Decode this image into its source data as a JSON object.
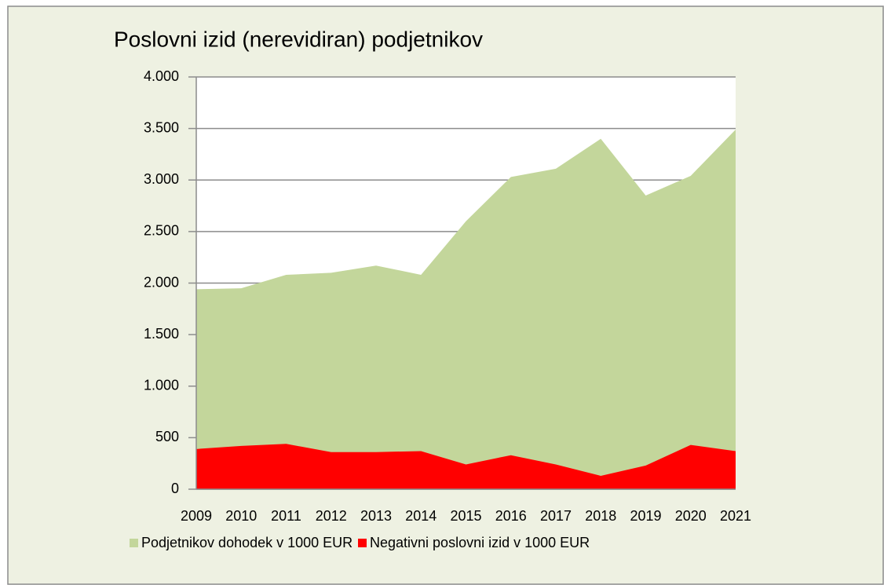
{
  "chart_data": {
    "type": "area",
    "title": "Poslovni  izid (nerevidiran)  podjetnikov",
    "categories": [
      "2009",
      "2010",
      "2011",
      "2012",
      "2013",
      "2014",
      "2015",
      "2016",
      "2017",
      "2018",
      "2019",
      "2020",
      "2021"
    ],
    "series": [
      {
        "name": "Podjetnikov dohodek v 1000 EUR",
        "color": "#c3d69b",
        "values": [
          1940,
          1950,
          2080,
          2100,
          2170,
          2080,
          2600,
          3030,
          3110,
          3400,
          2850,
          3040,
          3490
        ]
      },
      {
        "name": "Negativni poslovni izid v 1000 EUR",
        "color": "#ff0000",
        "values": [
          390,
          420,
          440,
          360,
          360,
          370,
          240,
          330,
          240,
          130,
          230,
          430,
          370
        ]
      }
    ],
    "ylim": [
      0,
      4000
    ],
    "yticks": [
      0,
      500,
      {
        "value": 1000,
        "label": "1.000"
      },
      {
        "value": 1500,
        "label": "1.500"
      },
      {
        "value": 2000,
        "label": "2.000"
      },
      {
        "value": 2500,
        "label": "2.500"
      },
      {
        "value": 3000,
        "label": "3.000"
      },
      {
        "value": 3500,
        "label": "3.500"
      },
      {
        "value": 4000,
        "label": "4.000"
      }
    ],
    "grid": true,
    "legend": "bottom"
  }
}
